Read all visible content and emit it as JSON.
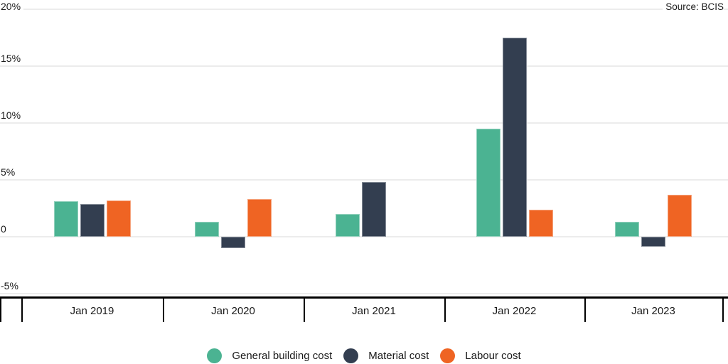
{
  "source_label": "Source: BCIS",
  "colors": {
    "general_building": "#4BB392",
    "material": "#333E50",
    "labour": "#EF6423",
    "gridline": "#ECECEC",
    "axis": "#000000",
    "text": "#1A1A1A",
    "background": "#FFFFFF"
  },
  "y_axis": {
    "ticks": [
      {
        "label": "20%",
        "value": 20
      },
      {
        "label": "15%",
        "value": 15
      },
      {
        "label": "10%",
        "value": 10
      },
      {
        "label": "5%",
        "value": 5
      },
      {
        "label": "0",
        "value": 0
      },
      {
        "label": "-5%",
        "value": -5
      }
    ]
  },
  "x_axis": {
    "categories": [
      "Jan 2019",
      "Jan 2020",
      "Jan 2021",
      "Jan 2022",
      "Jan 2023"
    ]
  },
  "legend": {
    "position": "bottom",
    "items": [
      {
        "label": "General building cost",
        "color": "#4BB392"
      },
      {
        "label": "Material cost",
        "color": "#333E50"
      },
      {
        "label": "Labour cost",
        "color": "#EF6423"
      }
    ]
  },
  "chart_data": {
    "type": "bar",
    "title": "",
    "categories": [
      "Jan 2019",
      "Jan 2020",
      "Jan 2021",
      "Jan 2022",
      "Jan 2023"
    ],
    "series": [
      {
        "name": "General building cost",
        "color": "#4BB392",
        "values": [
          3.1,
          1.3,
          2.0,
          9.5,
          1.3
        ]
      },
      {
        "name": "Material cost",
        "color": "#333E50",
        "values": [
          2.9,
          -1.0,
          4.8,
          17.5,
          -0.9
        ]
      },
      {
        "name": "Labour cost",
        "color": "#EF6423",
        "values": [
          3.2,
          3.3,
          0,
          2.4,
          3.7
        ]
      }
    ],
    "unit": "%",
    "xlabel": "",
    "ylabel": "",
    "ylim": [
      -5,
      20
    ],
    "grid": true,
    "legend_position": "bottom",
    "annotations": [
      "Source: BCIS"
    ]
  }
}
